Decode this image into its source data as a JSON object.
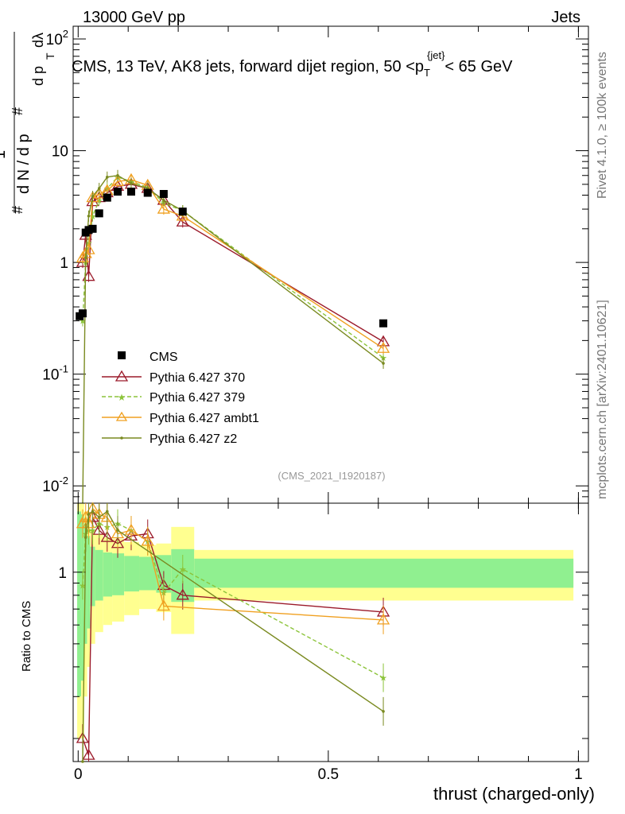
{
  "header": {
    "left": "13000 GeV pp",
    "right": "Jets",
    "side_top": "Rivet 4.1.0, ≥ 100k events",
    "side_bottom": "mcplots.cern.ch [arXiv:2401.10621]",
    "analysis_id": "(CMS_2021_I1920187)"
  },
  "colors": {
    "cms": "#000000",
    "p370": "#9b1a2a",
    "p379": "#8cc43a",
    "ambt1": "#f0a020",
    "z2": "#7a8a20",
    "band_inner": "#90f090",
    "band_outer": "#ffff90"
  },
  "chart_data": {
    "type": "line",
    "title": "CMS, 13 TeV, AK8 jets, forward dijet region, 50 <p",
    "title_sub": "T",
    "title_sup": "{jet}",
    "title_end": "< 65 GeV",
    "xlabel": "thrust (charged-only)",
    "ylabel_main": "1/N dN/dλ",
    "ylabel_ratio": "Ratio to CMS",
    "xlim": [
      -0.01,
      1.02
    ],
    "ylim_main": [
      0.007,
      130
    ],
    "ylim_ratio": [
      0.16,
      1.95
    ],
    "x_ticks": [
      "0",
      "0.5",
      "1"
    ],
    "y_ticks_main": [
      "10^-2",
      "10^-1",
      "1",
      "10",
      "10^2"
    ],
    "y_ticks_ratio": [
      "1"
    ],
    "legend": [
      "CMS",
      "Pythia 6.427 370",
      "Pythia 6.427 379",
      "Pythia 6.427 ambt1",
      "Pythia 6.427 z2"
    ],
    "x": [
      0.003,
      0.009,
      0.015,
      0.021,
      0.029,
      0.042,
      0.058,
      0.079,
      0.106,
      0.139,
      0.171,
      0.209,
      0.61
    ],
    "series": [
      {
        "name": "CMS",
        "values": [
          0.33,
          0.35,
          1.85,
          1.95,
          2.0,
          2.75,
          3.8,
          4.3,
          4.3,
          4.2,
          4.1,
          2.85,
          0.285
        ]
      },
      {
        "name": "Pythia 6.427 370",
        "values": [
          null,
          1.0,
          1.75,
          0.75,
          3.5,
          3.8,
          4.2,
          4.8,
          5.0,
          4.6,
          3.6,
          2.3,
          0.195
        ]
      },
      {
        "name": "Pythia 6.427 379",
        "values": [
          null,
          0.3,
          1.0,
          1.5,
          2.6,
          3.6,
          4.6,
          5.8,
          5.3,
          4.7,
          3.4,
          2.9,
          0.14
        ]
      },
      {
        "name": "Pythia 6.427 ambt1",
        "values": [
          null,
          1.1,
          1.2,
          1.3,
          3.8,
          4.1,
          4.4,
          5.3,
          5.5,
          4.9,
          3.0,
          2.6,
          0.17
        ]
      },
      {
        "name": "Pythia 6.427 z2",
        "values": [
          null,
          0.004,
          1.1,
          2.6,
          3.9,
          4.6,
          5.8,
          6.0,
          5.1,
          4.6,
          3.6,
          2.9,
          0.125
        ]
      }
    ],
    "ratio_series": [
      {
        "name": "Pythia 6.427 370",
        "values": [
          null,
          0.2,
          null,
          0.17,
          1.7,
          1.5,
          1.4,
          1.32,
          1.42,
          1.45,
          0.88,
          0.8,
          0.68
        ]
      },
      {
        "name": "Pythia 6.427 379",
        "values": [
          null,
          0.88,
          1.45,
          1.5,
          1.5,
          1.6,
          1.55,
          1.6,
          1.5,
          1.35,
          0.82,
          1.03,
          0.36
        ]
      },
      {
        "name": "Pythia 6.427 ambt1",
        "values": [
          null,
          1.6,
          1.7,
          1.6,
          1.85,
          1.75,
          1.7,
          1.45,
          1.5,
          1.35,
          0.72,
          null,
          0.63
        ]
      },
      {
        "name": "Pythia 6.427 z2",
        "values": [
          null,
          0.02,
          1.4,
          1.75,
          1.8,
          1.7,
          1.8,
          1.5,
          null,
          null,
          null,
          null,
          0.26
        ]
      }
    ],
    "ratio_band": [
      {
        "x0": -0.002,
        "x1": 0.006,
        "inner": [
          0.3,
          1.8
        ],
        "outer": [
          0.2,
          1.95
        ]
      },
      {
        "x0": 0.006,
        "x1": 0.012,
        "inner": [
          0.35,
          1.75
        ],
        "outer": [
          0.2,
          1.95
        ]
      },
      {
        "x0": 0.012,
        "x1": 0.018,
        "inner": [
          0.5,
          1.6
        ],
        "outer": [
          0.3,
          1.8
        ]
      },
      {
        "x0": 0.018,
        "x1": 0.024,
        "inner": [
          0.58,
          1.42
        ],
        "outer": [
          0.4,
          1.6
        ]
      },
      {
        "x0": 0.024,
        "x1": 0.034,
        "inner": [
          0.72,
          1.28
        ],
        "outer": [
          0.5,
          1.5
        ]
      },
      {
        "x0": 0.034,
        "x1": 0.05,
        "inner": [
          0.76,
          1.24
        ],
        "outer": [
          0.56,
          1.44
        ]
      },
      {
        "x0": 0.05,
        "x1": 0.068,
        "inner": [
          0.79,
          1.21
        ],
        "outer": [
          0.6,
          1.4
        ]
      },
      {
        "x0": 0.068,
        "x1": 0.092,
        "inner": [
          0.8,
          1.2
        ],
        "outer": [
          0.62,
          1.38
        ]
      },
      {
        "x0": 0.092,
        "x1": 0.122,
        "inner": [
          0.83,
          1.17
        ],
        "outer": [
          0.66,
          1.34
        ]
      },
      {
        "x0": 0.122,
        "x1": 0.156,
        "inner": [
          0.84,
          1.16
        ],
        "outer": [
          0.7,
          1.3
        ]
      },
      {
        "x0": 0.156,
        "x1": 0.186,
        "inner": [
          0.82,
          1.18
        ],
        "outer": [
          0.68,
          1.32
        ]
      },
      {
        "x0": 0.186,
        "x1": 0.232,
        "inner": [
          0.75,
          1.25
        ],
        "outer": [
          0.55,
          1.55
        ]
      },
      {
        "x0": 0.232,
        "x1": 0.99,
        "inner": [
          0.86,
          1.14
        ],
        "outer": [
          0.76,
          1.24
        ]
      }
    ]
  }
}
